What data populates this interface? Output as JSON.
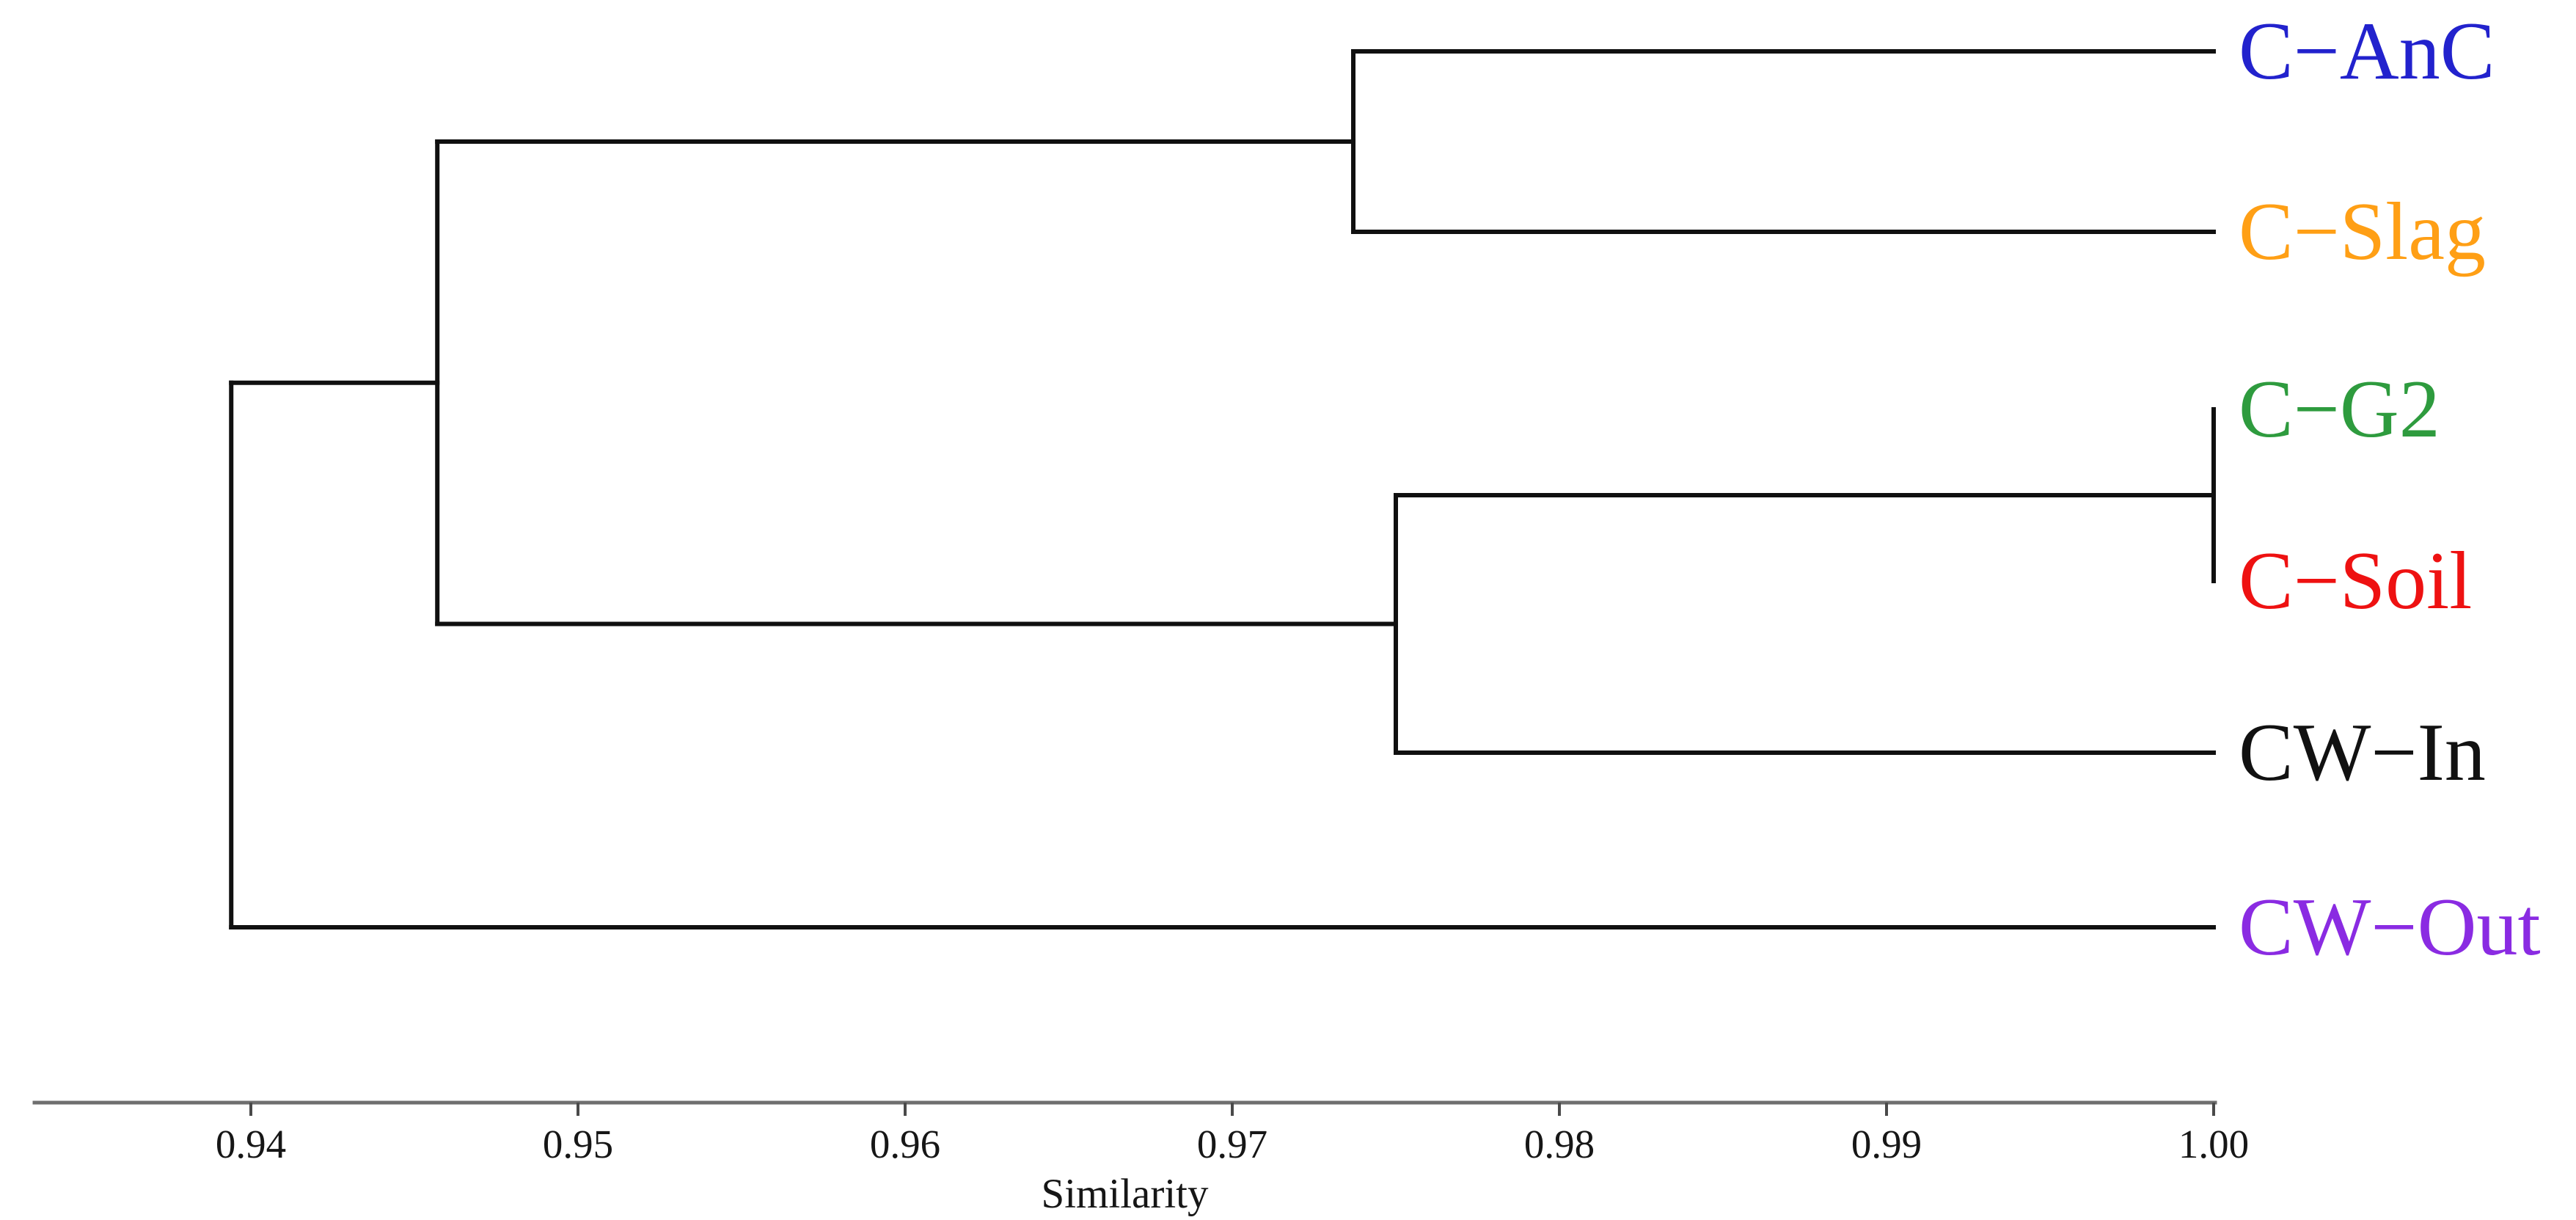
{
  "chart_data": {
    "type": "dendrogram",
    "orientation": "horizontal-right-leaves",
    "title": "",
    "xlabel": "Similarity",
    "legend": "none",
    "grid": false,
    "axis": {
      "label": "Similarity",
      "side": "bottom",
      "tick_labels": [
        "0.94",
        "0.95",
        "0.96",
        "0.97",
        "0.98",
        "0.99",
        "1.00"
      ],
      "tick_values": [
        0.94,
        0.95,
        0.96,
        0.97,
        0.98,
        0.99,
        1.0
      ],
      "drawn_range": [
        0.9334,
        1.0
      ],
      "line_color": "#6f6f6f",
      "tick_color": "#4a4a4a",
      "text_color": "#161616"
    },
    "branch_color": "#101010",
    "leaves": [
      {
        "id": "C-AnC",
        "label": "C−AnC",
        "color": "#2222cd",
        "tip_similarity": 1.0
      },
      {
        "id": "C-Slag",
        "label": "C−Slag",
        "color": "#ff9f15",
        "tip_similarity": 1.0
      },
      {
        "id": "C-G2",
        "label": "C−G2",
        "color": "#2e9b3e",
        "tip_similarity": 1.0
      },
      {
        "id": "C-Soil",
        "label": "C−Soil",
        "color": "#ee1111",
        "tip_similarity": 1.0
      },
      {
        "id": "CW-In",
        "label": "CW−In",
        "color": "#111111",
        "tip_similarity": 1.0
      },
      {
        "id": "CW-Out",
        "label": "CW−Out",
        "color": "#8a2be2",
        "tip_similarity": 1.0
      }
    ],
    "merges": [
      {
        "joins": [
          "C-G2",
          "C-Soil"
        ],
        "similarity": 1.0
      },
      {
        "joins": [
          "C-AnC",
          "C-Slag"
        ],
        "similarity": 0.974
      },
      {
        "joins": [
          "(C-G2,C-Soil)",
          "CW-In"
        ],
        "similarity": 0.975
      },
      {
        "joins": [
          "(C-AnC,C-Slag)",
          "((C-G2,C-Soil),CW-In)"
        ],
        "similarity": 0.946
      },
      {
        "joins": [
          "((C-AnC,C-Slag),((C-G2,C-Soil),CW-In))",
          "CW-Out"
        ],
        "similarity": 0.939
      }
    ],
    "tree": {
      "similarity": 0.9394,
      "children": [
        {
          "similarity": 0.9457,
          "children": [
            {
              "similarity": 0.9737,
              "children": [
                {
                  "leaf": "C-AnC"
                },
                {
                  "leaf": "C-Slag"
                }
              ]
            },
            {
              "similarity": 0.975,
              "children": [
                {
                  "similarity": 1.0,
                  "children": [
                    {
                      "leaf": "C-G2"
                    },
                    {
                      "leaf": "C-Soil"
                    }
                  ]
                },
                {
                  "leaf": "CW-In"
                }
              ]
            }
          ]
        },
        {
          "leaf": "CW-Out"
        }
      ]
    }
  }
}
